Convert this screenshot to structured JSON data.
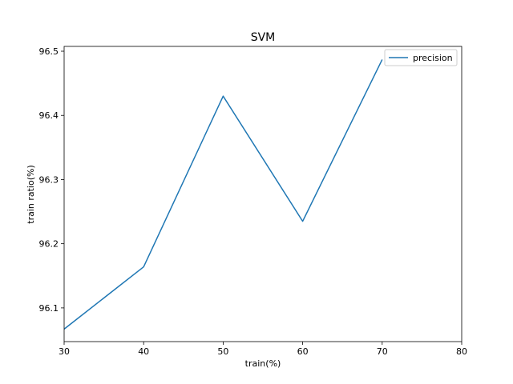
{
  "chart_data": {
    "type": "line",
    "title": "SVM",
    "xlabel": "train(%)",
    "ylabel": "train ratio(%)",
    "xlim": [
      30,
      80
    ],
    "ylim": [
      96.0475,
      96.5075
    ],
    "xticks": [
      30,
      40,
      50,
      60,
      70,
      80
    ],
    "yticks": [
      96.1,
      96.2,
      96.3,
      96.4,
      96.5
    ],
    "grid": false,
    "legend_position": "top-right",
    "series": [
      {
        "name": "precision",
        "color": "#1f77b4",
        "x": [
          30,
          40,
          50,
          60,
          70
        ],
        "y": [
          96.067,
          96.164,
          96.43,
          96.235,
          96.487
        ]
      }
    ]
  }
}
